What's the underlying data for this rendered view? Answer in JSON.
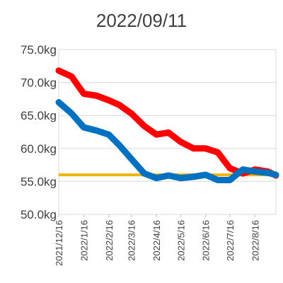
{
  "chart_data": {
    "type": "line",
    "title": "2022/09/11",
    "x": [
      "2021/12/16",
      "2022/1/1",
      "2022/1/16",
      "2022/2/1",
      "2022/2/16",
      "2022/3/1",
      "2022/3/16",
      "2022/4/1",
      "2022/4/16",
      "2022/5/1",
      "2022/5/16",
      "2022/6/1",
      "2022/6/16",
      "2022/7/1",
      "2022/7/16",
      "2022/8/1",
      "2022/8/16",
      "2022/9/1",
      "2022/9/11"
    ],
    "series": [
      {
        "color": "#ff0000",
        "values": [
          71.8,
          70.9,
          68.3,
          68.0,
          67.3,
          66.6,
          65.3,
          63.4,
          62.1,
          62.4,
          61.0,
          60.0,
          60.0,
          59.4,
          57.0,
          56.2,
          56.8,
          56.5,
          55.9
        ]
      },
      {
        "color": "#0070c0",
        "values": [
          67.0,
          65.3,
          63.2,
          62.7,
          62.1,
          60.5,
          58.4,
          56.2,
          55.5,
          55.9,
          55.5,
          55.7,
          56.0,
          55.2,
          55.2,
          56.8,
          56.5,
          56.3,
          56.0
        ]
      }
    ],
    "reference_line": {
      "value": 56,
      "color": "#f0b400"
    },
    "xlim": [
      "2021/12/16",
      "2022/9/11"
    ],
    "xticks": [
      "2021/12/16",
      "2022/1/16",
      "2022/2/16",
      "2022/3/16",
      "2022/4/16",
      "2022/5/16",
      "2022/6/16",
      "2022/7/16",
      "2022/8/16"
    ],
    "ylim": [
      50,
      75
    ],
    "yticks": [
      {
        "value": 50,
        "label": "50.0kg"
      },
      {
        "value": 55,
        "label": "55.0kg"
      },
      {
        "value": 60,
        "label": "60.0kg"
      },
      {
        "value": 65,
        "label": "65.0kg"
      },
      {
        "value": 70,
        "label": "70.0kg"
      },
      {
        "value": 75,
        "label": "75.0kg"
      }
    ],
    "grid": true
  }
}
